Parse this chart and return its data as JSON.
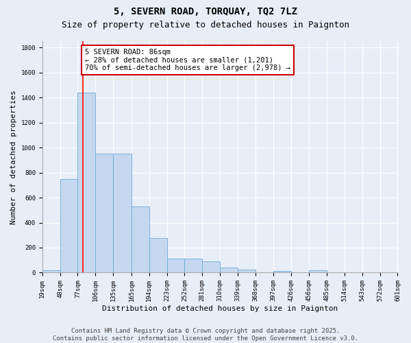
{
  "title": "5, SEVERN ROAD, TORQUAY, TQ2 7LZ",
  "subtitle": "Size of property relative to detached houses in Paignton",
  "xlabel": "Distribution of detached houses by size in Paignton",
  "ylabel": "Number of detached properties",
  "bin_edges": [
    19,
    48,
    77,
    106,
    135,
    165,
    194,
    223,
    252,
    281,
    310,
    339,
    368,
    397,
    426,
    456,
    485,
    514,
    543,
    572,
    601
  ],
  "bar_heights": [
    20,
    750,
    1440,
    950,
    950,
    530,
    275,
    110,
    110,
    90,
    40,
    25,
    0,
    15,
    0,
    20,
    0,
    0,
    0,
    0
  ],
  "bar_color": "#c5d8f0",
  "bar_edge_color": "#6aaad4",
  "red_line_x": 86,
  "ylim": [
    0,
    1850
  ],
  "xlim": [
    19,
    601
  ],
  "annotation_text": "5 SEVERN ROAD: 86sqm\n← 28% of detached houses are smaller (1,201)\n70% of semi-detached houses are larger (2,978) →",
  "annotation_box_color": "#ffffff",
  "annotation_box_edge": "#cc0000",
  "footer1": "Contains HM Land Registry data © Crown copyright and database right 2025.",
  "footer2": "Contains public sector information licensed under the Open Government Licence v3.0.",
  "bg_color": "#e8eef8",
  "grid_color": "#ffffff",
  "title_fontsize": 10,
  "subtitle_fontsize": 9,
  "axis_label_fontsize": 8,
  "tick_label_fontsize": 6.5,
  "annotation_fontsize": 7.5,
  "footer_fontsize": 6.5
}
